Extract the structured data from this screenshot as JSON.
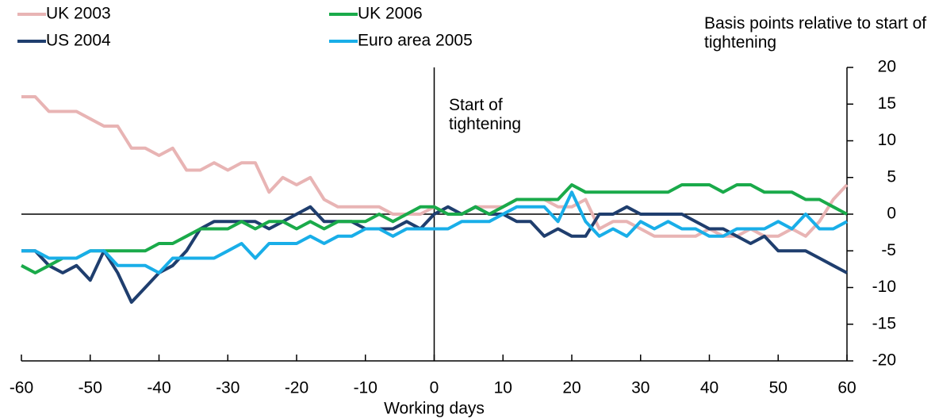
{
  "chart_data": {
    "type": "line",
    "y_axis_label": "Basis points relative to start of tightening",
    "x_axis_label": "Working days",
    "annotation": "Start of tightening",
    "x": [
      -60,
      -58,
      -56,
      -54,
      -52,
      -50,
      -48,
      -46,
      -44,
      -42,
      -40,
      -38,
      -36,
      -34,
      -32,
      -30,
      -28,
      -26,
      -24,
      -22,
      -20,
      -18,
      -16,
      -14,
      -12,
      -10,
      -8,
      -6,
      -4,
      -2,
      0,
      2,
      4,
      6,
      8,
      10,
      12,
      14,
      16,
      18,
      20,
      22,
      24,
      26,
      28,
      30,
      32,
      34,
      36,
      38,
      40,
      42,
      44,
      46,
      48,
      50,
      52,
      54,
      56,
      58,
      60
    ],
    "series": [
      {
        "name": "UK 2003",
        "color": "#e8b4b4",
        "values": [
          16,
          16,
          14,
          14,
          14,
          13,
          12,
          12,
          9,
          9,
          8,
          9,
          6,
          6,
          7,
          6,
          7,
          7,
          3,
          5,
          4,
          5,
          2,
          1,
          1,
          1,
          1,
          0,
          0,
          0,
          1,
          0,
          0,
          1,
          1,
          1,
          2,
          2,
          2,
          1,
          1,
          2,
          -2,
          -1,
          -1,
          -2,
          -3,
          -3,
          -3,
          -3,
          -2,
          -3,
          -3,
          -2,
          -3,
          -3,
          -2,
          -3,
          -1,
          2,
          4
        ]
      },
      {
        "name": "US 2004",
        "color": "#1f3e6e",
        "values": [
          -5,
          -5,
          -7,
          -8,
          -7,
          -9,
          -5,
          -8,
          -12,
          -10,
          -8,
          -7,
          -5,
          -2,
          -1,
          -1,
          -1,
          -1,
          -2,
          -1,
          0,
          1,
          -1,
          -1,
          -1,
          -2,
          -2,
          -2,
          -1,
          -2,
          0,
          1,
          0,
          1,
          0,
          0,
          -1,
          -1,
          -3,
          -2,
          -3,
          -3,
          0,
          0,
          1,
          0,
          0,
          0,
          0,
          -1,
          -2,
          -2,
          -3,
          -4,
          -3,
          -5,
          -5,
          -5,
          -6,
          -7,
          -8
        ]
      },
      {
        "name": "UK 2006",
        "color": "#1aaa4a",
        "values": [
          -7,
          -8,
          -7,
          -6,
          -6,
          -5,
          -5,
          -5,
          -5,
          -5,
          -4,
          -4,
          -3,
          -2,
          -2,
          -2,
          -1,
          -2,
          -1,
          -1,
          -2,
          -1,
          -2,
          -1,
          -1,
          -1,
          0,
          -1,
          0,
          1,
          1,
          0,
          0,
          1,
          0,
          1,
          2,
          2,
          2,
          2,
          4,
          3,
          3,
          3,
          3,
          3,
          3,
          3,
          4,
          4,
          4,
          3,
          4,
          4,
          3,
          3,
          3,
          2,
          2,
          1,
          0
        ]
      },
      {
        "name": "Euro area 2005",
        "color": "#19aee8",
        "values": [
          -5,
          -5,
          -6,
          -6,
          -6,
          -5,
          -5,
          -7,
          -7,
          -7,
          -8,
          -6,
          -6,
          -6,
          -6,
          -5,
          -4,
          -6,
          -4,
          -4,
          -4,
          -3,
          -4,
          -3,
          -3,
          -2,
          -2,
          -3,
          -2,
          -2,
          -2,
          -2,
          -1,
          -1,
          -1,
          0,
          1,
          1,
          1,
          -1,
          3,
          -1,
          -3,
          -2,
          -3,
          -1,
          -2,
          -1,
          -2,
          -2,
          -3,
          -3,
          -2,
          -2,
          -2,
          -1,
          -2,
          0,
          -2,
          -2,
          -1
        ]
      }
    ],
    "xlim": [
      -60,
      60
    ],
    "xticks": [
      -60,
      -50,
      -40,
      -30,
      -20,
      -10,
      0,
      10,
      20,
      30,
      40,
      50,
      60
    ],
    "ylim": [
      -20,
      20
    ],
    "yticks": [
      -20,
      -15,
      -10,
      -5,
      0,
      5,
      10,
      15,
      20
    ]
  }
}
